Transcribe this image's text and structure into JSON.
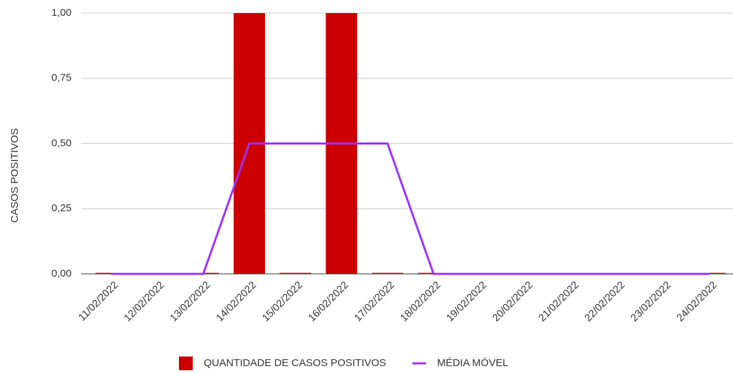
{
  "chart_data": {
    "type": "combo",
    "categories": [
      "11/02/2022",
      "12/02/2022",
      "13/02/2022",
      "14/02/2022",
      "15/02/2022",
      "16/02/2022",
      "17/02/2022",
      "18/02/2022",
      "19/02/2022",
      "20/02/2022",
      "21/02/2022",
      "22/02/2022",
      "23/02/2022",
      "24/02/2022"
    ],
    "series": [
      {
        "name": "QUANTIDADE DE CASOS POSITIVOS",
        "type": "bar",
        "color": "#cc0000",
        "values": [
          0,
          0,
          0,
          1,
          0,
          1,
          0,
          0,
          0,
          0,
          0,
          0,
          0,
          0
        ]
      },
      {
        "name": "MÉDIA MÓVEL",
        "type": "line",
        "color": "#9b30ff",
        "values": [
          0,
          0,
          0,
          0.5,
          0.5,
          0.5,
          0.5,
          0,
          0,
          0,
          0,
          0,
          0,
          0
        ]
      }
    ],
    "y_label": "CASOS POSITIVOS",
    "ylim": [
      0,
      1
    ],
    "yticks": [
      {
        "value": 0,
        "label": "0,00"
      },
      {
        "value": 0.25,
        "label": "0,25"
      },
      {
        "value": 0.5,
        "label": "0,50"
      },
      {
        "value": 0.75,
        "label": "0,75"
      },
      {
        "value": 1,
        "label": "1,00"
      }
    ],
    "grid": true,
    "legend": "bottom"
  }
}
